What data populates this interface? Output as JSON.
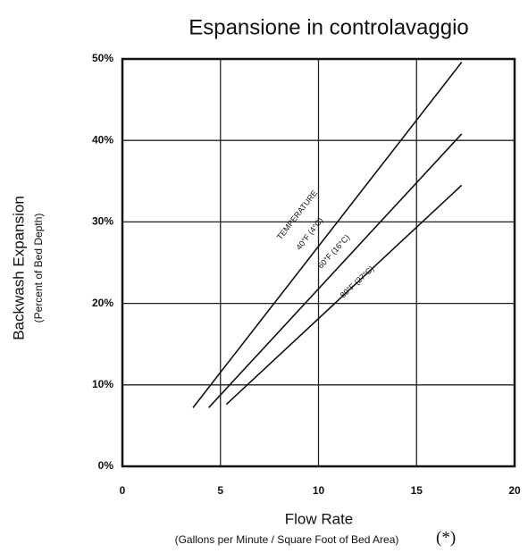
{
  "chart_data": {
    "type": "line",
    "title": "Espansione in controlavaggio",
    "y_label": "Backwash Expansion",
    "y_sublabel": "(Percent of Bed Depth)",
    "x_label": "Flow Rate",
    "x_sublabel": "(Gallons per Minute / Square Foot of Bed Area)",
    "footnote_mark": "(*)",
    "annotation": "TEMPERATURE",
    "xlim": [
      0,
      20
    ],
    "xticks": [
      0,
      5,
      10,
      15,
      20
    ],
    "ylim": [
      0,
      50
    ],
    "yticks": [
      {
        "value": 0,
        "label": "0%"
      },
      {
        "value": 10,
        "label": "10%"
      },
      {
        "value": 20,
        "label": "20%"
      },
      {
        "value": 30,
        "label": "30%"
      },
      {
        "value": 40,
        "label": "40%"
      },
      {
        "value": 50,
        "label": "50%"
      }
    ],
    "grid": true,
    "series": [
      {
        "name": "40°F (4°C)",
        "color": "#111111",
        "x": [
          3.6,
          17.3
        ],
        "values": [
          7.2,
          49.6
        ]
      },
      {
        "name": "60°F (16°C)",
        "color": "#111111",
        "x": [
          4.4,
          17.3
        ],
        "values": [
          7.2,
          40.8
        ]
      },
      {
        "name": "80°F (27°C)",
        "color": "#111111",
        "x": [
          5.3,
          17.3
        ],
        "values": [
          7.6,
          34.5
        ]
      }
    ]
  }
}
